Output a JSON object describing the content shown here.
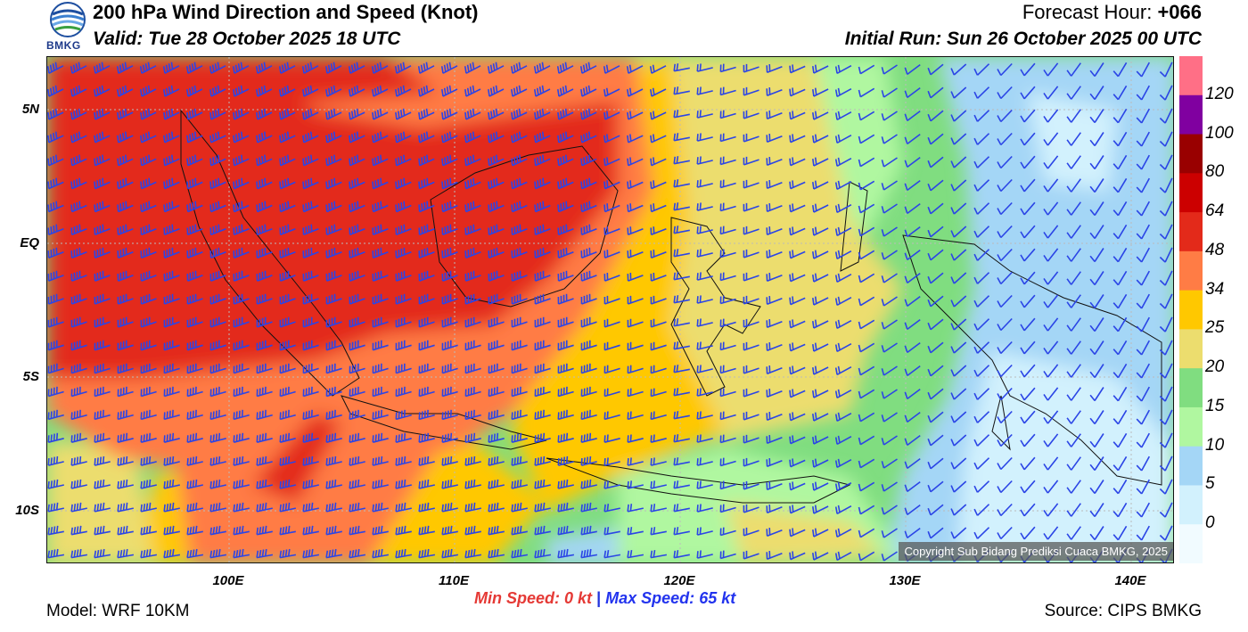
{
  "header": {
    "logo_text": "BMKG",
    "title": "200 hPa Wind Direction and Speed (Knot)",
    "valid": "Valid: Tue 28 October 2025 18 UTC",
    "forecast_hour_label": "Forecast Hour:",
    "forecast_hour_value": "+066",
    "initial_run": "Initial Run: Sun 26 October 2025 00 UTC"
  },
  "map": {
    "lat_labels": [
      "5N",
      "EQ",
      "5S",
      "10S"
    ],
    "lon_labels": [
      "100E",
      "110E",
      "120E",
      "130E",
      "140E"
    ],
    "copyright": "Copyright Sub Bidang Prediksi Cuaca BMKG, 2025"
  },
  "colorbar": {
    "labels": [
      "120",
      "100",
      "80",
      "64",
      "48",
      "34",
      "25",
      "20",
      "15",
      "10",
      "5",
      "0"
    ],
    "colors": [
      "#ff6f86",
      "#8000a0",
      "#990000",
      "#cc0000",
      "#e32a1a",
      "#ff7c45",
      "#ffc800",
      "#ecdd6e",
      "#80dd80",
      "#b0f7a0",
      "#a4d6f6",
      "#d2f1fd",
      "#f1fbff"
    ]
  },
  "speed": {
    "min_label": "Min Speed:",
    "min_value": "0 kt",
    "separator": "|",
    "max_label": "Max Speed:",
    "max_value": "65 kt"
  },
  "footer": {
    "model": "Model: WRF 10KM",
    "source": "Source: CIPS BMKG"
  }
}
